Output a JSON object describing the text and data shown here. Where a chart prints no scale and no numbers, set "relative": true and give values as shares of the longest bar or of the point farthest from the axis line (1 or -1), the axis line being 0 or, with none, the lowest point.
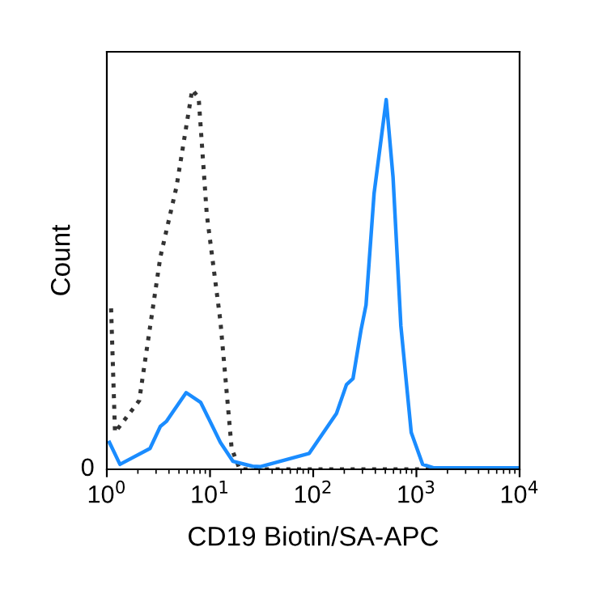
{
  "chart_data": {
    "type": "line",
    "xlabel": "CD19 Biotin/SA-APC",
    "ylabel": "Count",
    "relative": true,
    "log": "x",
    "xlim": [
      1,
      10000
    ],
    "xticks": [
      {
        "value": 1,
        "label": "10$^{0}$"
      },
      {
        "value": 10,
        "label": "10$^{1}$"
      },
      {
        "value": 100,
        "label": "10$^{2}$"
      },
      {
        "value": 1000,
        "label": "10$^{3}$"
      },
      {
        "value": 10000,
        "label": "10$^{4}$"
      }
    ],
    "annotations": [
      "0"
    ],
    "grid": false,
    "legend": false,
    "series": [
      {
        "color": "#333333",
        "line_style": "dotted",
        "x": [
          1.1,
          1.2,
          2.06,
          3.3,
          4.73,
          6.72,
          7.76,
          9.3,
          12.6,
          16.2,
          19.4,
          100,
          10000
        ],
        "values": [
          0.424,
          0.097,
          0.181,
          0.559,
          0.744,
          1,
          0.979,
          0.672,
          0.391,
          0.055,
          0,
          0,
          0
        ]
      },
      {
        "color": "#1a8cff",
        "line_style": "solid",
        "x": [
          1.06,
          1.34,
          2.62,
          3.3,
          3.77,
          5.87,
          8.13,
          12.6,
          16.7,
          25.8,
          31,
          91.5,
          168,
          210,
          243,
          290,
          325,
          389,
          510,
          594,
          707,
          891,
          1150,
          1460,
          10000
        ],
        "values": [
          0.071,
          0.013,
          0.055,
          0.113,
          0.126,
          0.202,
          0.176,
          0.071,
          0.021,
          0.008,
          0.007,
          0.042,
          0.147,
          0.223,
          0.239,
          0.366,
          0.433,
          0.727,
          0.974,
          0.769,
          0.378,
          0.097,
          0.013,
          0.004,
          0.004
        ]
      }
    ]
  }
}
